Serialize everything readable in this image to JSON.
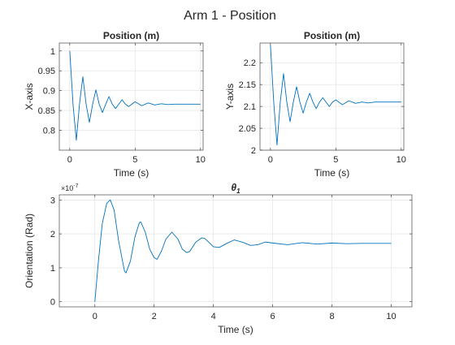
{
  "figure": {
    "title": "Arm 1 - Position"
  },
  "colors": {
    "line": "#0072BD",
    "axis": "#262626",
    "grid": "#DFDFDF"
  },
  "chart_data": [
    {
      "type": "line",
      "title": "Position (m)",
      "xlabel": "Time (s)",
      "ylabel": "X-axis",
      "xlim": [
        -0.8,
        10.2
      ],
      "ylim": [
        0.75,
        1.02
      ],
      "xticks": [
        0,
        5,
        10
      ],
      "yticks": [
        0.8,
        0.85,
        0.9,
        0.95,
        1
      ],
      "ytick_labels": [
        "0.8",
        "0.85",
        "0.9",
        "0.95",
        "1"
      ],
      "grid": true,
      "series": [
        {
          "x": [
            0,
            0.25,
            0.5,
            0.75,
            1.0,
            1.25,
            1.5,
            1.75,
            2.0,
            2.25,
            2.5,
            2.75,
            3.0,
            3.25,
            3.5,
            3.75,
            4.0,
            4.25,
            4.5,
            4.75,
            5.0,
            5.5,
            6.0,
            6.5,
            7.0,
            7.5,
            8.0,
            9.0,
            10.0
          ],
          "y": [
            1.0,
            0.865,
            0.775,
            0.868,
            0.935,
            0.866,
            0.82,
            0.866,
            0.902,
            0.866,
            0.845,
            0.866,
            0.885,
            0.866,
            0.855,
            0.866,
            0.877,
            0.866,
            0.86,
            0.866,
            0.872,
            0.862,
            0.869,
            0.864,
            0.867,
            0.865,
            0.866,
            0.866,
            0.866
          ]
        }
      ]
    },
    {
      "type": "line",
      "title": "Position (m)",
      "xlabel": "Time (s)",
      "ylabel": "Y-axis",
      "xlim": [
        -0.8,
        10.2
      ],
      "ylim": [
        2.0,
        2.245
      ],
      "xticks": [
        0,
        5,
        10
      ],
      "yticks": [
        2.0,
        2.05,
        2.1,
        2.15,
        2.2
      ],
      "ytick_labels": [
        "2",
        "2.05",
        "2.1",
        "2.15",
        "2.2"
      ],
      "grid": true,
      "series": [
        {
          "x": [
            0,
            0.25,
            0.5,
            0.75,
            1.0,
            1.25,
            1.5,
            1.75,
            2.0,
            2.25,
            2.5,
            2.75,
            3.0,
            3.25,
            3.5,
            3.75,
            4.0,
            4.25,
            4.5,
            4.75,
            5.0,
            5.5,
            6.0,
            6.5,
            7.0,
            7.5,
            8.0,
            9.0,
            10.0
          ],
          "y": [
            2.24,
            2.11,
            2.012,
            2.11,
            2.175,
            2.11,
            2.065,
            2.11,
            2.145,
            2.11,
            2.085,
            2.11,
            2.13,
            2.11,
            2.095,
            2.11,
            2.12,
            2.11,
            2.1,
            2.11,
            2.115,
            2.104,
            2.113,
            2.107,
            2.11,
            2.108,
            2.11,
            2.11,
            2.11
          ]
        }
      ]
    },
    {
      "type": "line",
      "title": "θ",
      "title_subscript": "1",
      "xlabel": "Time (s)",
      "ylabel": "Orientation (Rad)",
      "exponent": "×10",
      "exponent_power": "-7",
      "xlim": [
        -1.2,
        10.7
      ],
      "ylim": [
        -0.15,
        3.15
      ],
      "xticks": [
        0,
        2,
        4,
        6,
        8,
        10
      ],
      "yticks": [
        0,
        1,
        2,
        3
      ],
      "ytick_labels": [
        "0",
        "1",
        "2",
        "3"
      ],
      "grid": true,
      "series": [
        {
          "x": [
            0,
            0.12,
            0.25,
            0.4,
            0.52,
            0.65,
            0.8,
            1.0,
            1.05,
            1.2,
            1.35,
            1.5,
            1.55,
            1.7,
            1.85,
            2.0,
            2.1,
            2.25,
            2.4,
            2.6,
            2.8,
            2.95,
            3.1,
            3.2,
            3.4,
            3.6,
            3.7,
            3.85,
            4.0,
            4.2,
            4.45,
            4.7,
            5.0,
            5.25,
            5.5,
            5.75,
            6.0,
            6.5,
            7.0,
            7.5,
            8.0,
            8.5,
            9.0,
            10.0
          ],
          "y": [
            0.0,
            1.2,
            2.3,
            2.9,
            3.0,
            2.7,
            1.8,
            0.9,
            0.85,
            1.2,
            1.9,
            2.33,
            2.35,
            2.05,
            1.55,
            1.3,
            1.25,
            1.5,
            1.85,
            2.05,
            1.85,
            1.55,
            1.45,
            1.48,
            1.75,
            1.88,
            1.87,
            1.75,
            1.62,
            1.6,
            1.72,
            1.82,
            1.75,
            1.66,
            1.68,
            1.76,
            1.73,
            1.68,
            1.74,
            1.7,
            1.73,
            1.71,
            1.72,
            1.72
          ]
        }
      ]
    }
  ]
}
